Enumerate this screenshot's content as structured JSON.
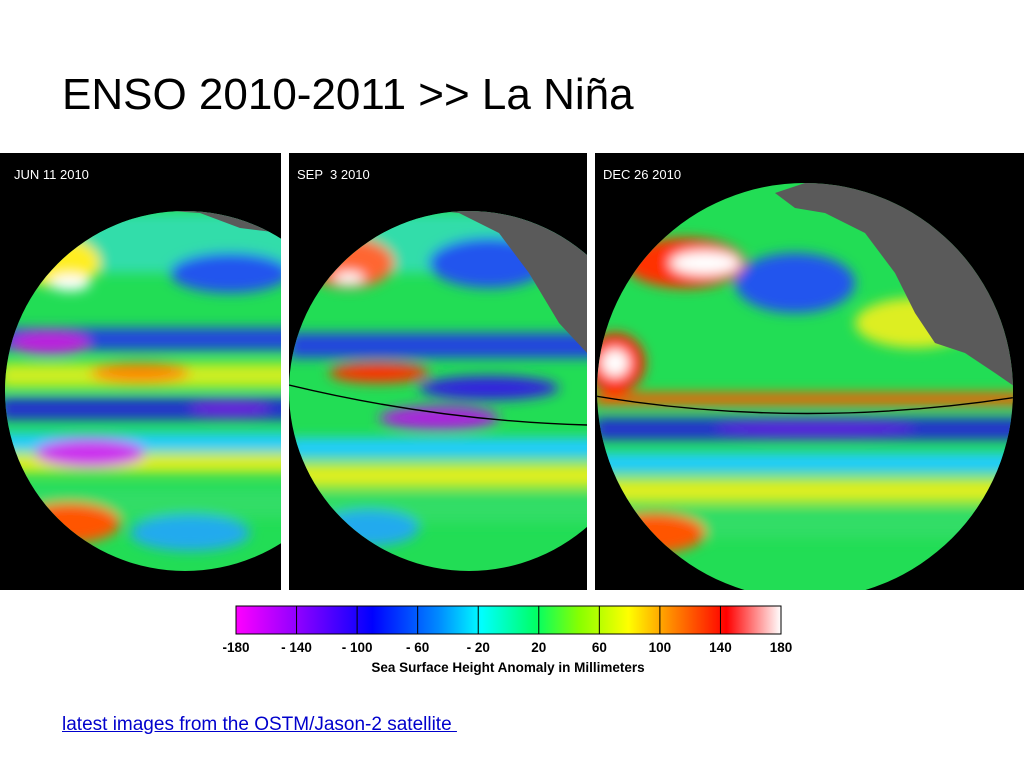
{
  "slide": {
    "title": "ENSO 2010-2011 >> La Niña"
  },
  "panels": [
    {
      "date": "JUN 11 2010"
    },
    {
      "date": "SEP  3 2010"
    },
    {
      "date": "DEC 26 2010"
    }
  ],
  "colorbar": {
    "ticks": [
      "-180",
      "- 140",
      "- 100",
      "- 60",
      "- 20",
      "20",
      "60",
      "100",
      "140",
      "180"
    ],
    "label": "Sea Surface Height Anomaly in Millimeters",
    "range": [
      -180,
      180
    ]
  },
  "link": {
    "text": "latest images from the OSTM/Jason-2 satellite "
  },
  "colors": {
    "link": "#0000cc",
    "panel_bg": "#000000",
    "land": "#5a5a5a"
  }
}
